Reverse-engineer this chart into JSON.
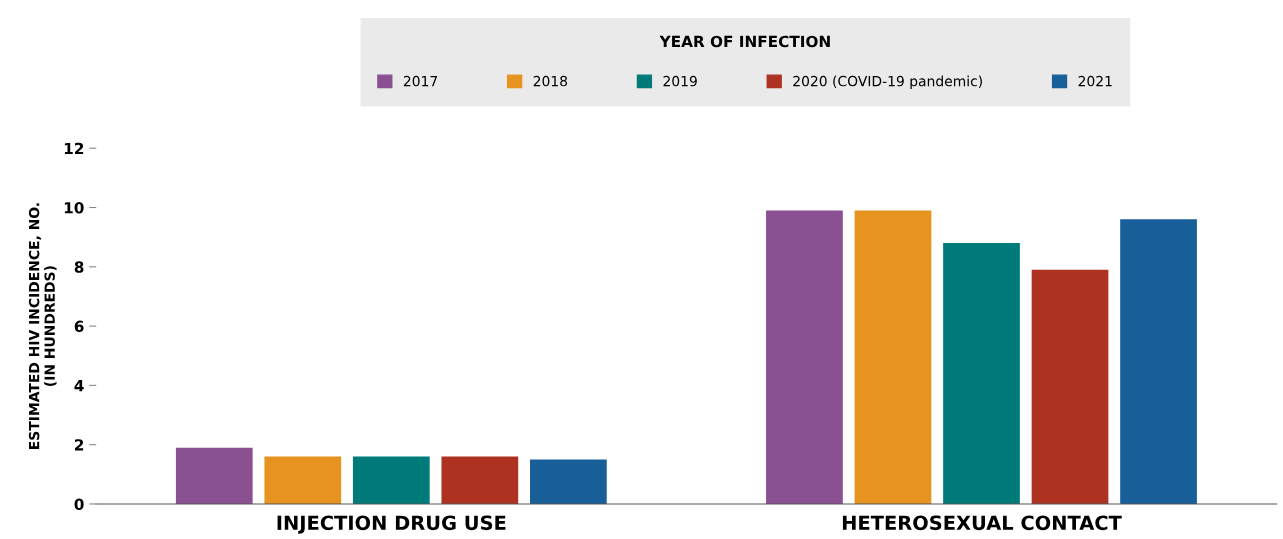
{
  "chart_data": {
    "type": "bar",
    "ylabel": "ESTIMATED HIV INCIDENCE, NO.\n(IN HUNDREDS)",
    "legend_title": "YEAR OF INFECTION",
    "categories": [
      "INJECTION DRUG USE",
      "HETEROSEXUAL CONTACT"
    ],
    "series": [
      {
        "name": "2017",
        "color": "#8a5091",
        "values": [
          1.9,
          9.9
        ]
      },
      {
        "name": "2018",
        "color": "#e69320",
        "values": [
          1.6,
          9.9
        ]
      },
      {
        "name": "2019",
        "color": "#017a7a",
        "values": [
          1.6,
          8.8
        ]
      },
      {
        "name": "2020 (COVID-19 pandemic)",
        "color": "#ae3222",
        "values": [
          1.6,
          7.9
        ]
      },
      {
        "name": "2021",
        "color": "#185f9a",
        "values": [
          1.5,
          9.6
        ]
      }
    ],
    "ylim": [
      0,
      12
    ],
    "yticks": [
      0,
      2,
      4,
      6,
      8,
      10,
      12
    ],
    "grid": false,
    "legend": "top"
  }
}
